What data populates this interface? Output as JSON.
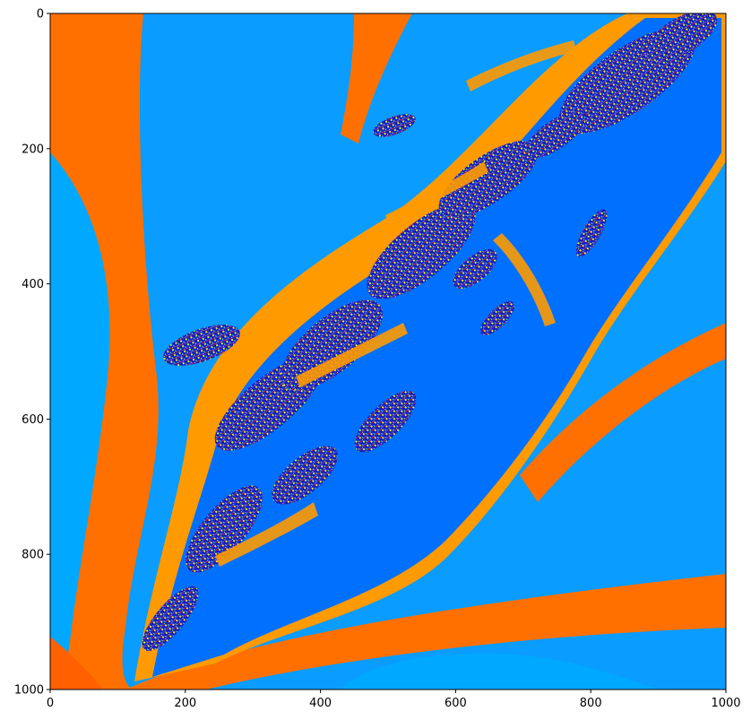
{
  "chart_data": {
    "type": "heatmap",
    "title": "",
    "xlabel": "",
    "ylabel": "",
    "xlim": [
      0,
      1000
    ],
    "ylim": [
      1000,
      0
    ],
    "x_ticks": [
      0,
      200,
      400,
      600,
      800,
      1000
    ],
    "y_ticks": [
      0,
      200,
      400,
      600,
      800,
      1000
    ],
    "grid": false,
    "legend": "none",
    "image": {
      "width": 1000,
      "height": 1000,
      "description_colors": {
        "outer_orange": "#ff7000",
        "mid_orange": "#ff9000",
        "light_orange": "#ffa000",
        "sky_blue": "#0aa0ff",
        "mid_blue": "#0088ff",
        "deep_blue": "#0070ff",
        "dark_blue": "#1020c0",
        "yellow": "#e8f020",
        "cyan": "#40e0e0",
        "red": "#ff2020"
      }
    }
  }
}
